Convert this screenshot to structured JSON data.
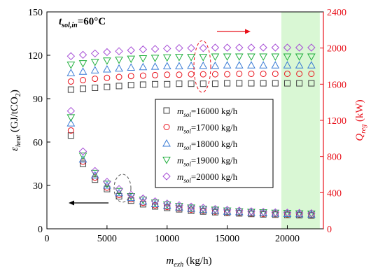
{
  "chart_data": {
    "type": "scatter",
    "annotation": "t_sol,in=60°C",
    "annotation_parts": {
      "sym": "t",
      "sub": "sol,in",
      "rest": "=60°C"
    },
    "xlabel": {
      "sym": "m",
      "sub": "exh",
      "unit": " (kg/h)"
    },
    "ylabel_left": {
      "sym": "ε",
      "sub": "heat",
      "unit_a": " (GJ/tCO",
      "unit_sub": "2",
      "unit_b": ")"
    },
    "ylabel_right": {
      "sym": "Q",
      "sub": "reg",
      "unit": " (kW)"
    },
    "xlim": [
      0,
      23000
    ],
    "ylim_left": [
      0,
      150
    ],
    "ylim_right": [
      0,
      2400
    ],
    "x_ticks": [
      "0",
      "5000",
      "10000",
      "15000",
      "20000"
    ],
    "y_ticks_left": [
      "0",
      "30",
      "60",
      "90",
      "120",
      "150"
    ],
    "y_ticks_right": [
      "0",
      "400",
      "800",
      "1200",
      "1600",
      "2000",
      "2400"
    ],
    "highlight_region": {
      "x_from": 19500,
      "x_to": 22700,
      "color": "#d9f7d4"
    },
    "x": [
      2000,
      3000,
      4000,
      5000,
      6000,
      7000,
      8000,
      9000,
      10000,
      11000,
      12000,
      13000,
      14000,
      15000,
      16000,
      17000,
      18000,
      19000,
      20000,
      21000,
      22000
    ],
    "series": [
      {
        "name": "m_sol=16000 kg/h",
        "label_parts": {
          "sym": "m",
          "sub": "sol",
          "rest": "=16000 kg/h"
        },
        "marker": "square",
        "color": "#404040",
        "eps_heat": [
          64.5,
          45.0,
          34.0,
          27.5,
          22.5,
          19.5,
          17.0,
          15.5,
          14.5,
          13.5,
          12.5,
          12.0,
          11.5,
          11.0,
          10.7,
          10.3,
          10.0,
          9.8,
          9.6,
          9.4,
          9.2
        ],
        "Q_reg": [
          1540,
          1550,
          1560,
          1570,
          1580,
          1590,
          1595,
          1600,
          1600,
          1605,
          1605,
          1605,
          1605,
          1610,
          1610,
          1610,
          1610,
          1610,
          1610,
          1610,
          1610
        ]
      },
      {
        "name": "m_sol=17000 kg/h",
        "label_parts": {
          "sym": "m",
          "sub": "sol",
          "rest": "=17000 kg/h"
        },
        "marker": "circle",
        "color": "#e8101a",
        "eps_heat": [
          68.0,
          46.5,
          35.5,
          28.5,
          23.5,
          20.5,
          18.0,
          16.3,
          15.2,
          14.2,
          13.3,
          12.6,
          12.0,
          11.5,
          11.1,
          10.7,
          10.4,
          10.2,
          10.0,
          9.8,
          9.6
        ],
        "Q_reg": [
          1630,
          1645,
          1660,
          1670,
          1680,
          1690,
          1695,
          1700,
          1705,
          1705,
          1710,
          1710,
          1710,
          1710,
          1715,
          1715,
          1715,
          1715,
          1715,
          1715,
          1715
        ]
      },
      {
        "name": "m_sol=18000 kg/h",
        "label_parts": {
          "sym": "m",
          "sub": "sol",
          "rest": "=18000 kg/h"
        },
        "marker": "triangle-up",
        "color": "#3a7bd5",
        "eps_heat": [
          73.0,
          48.0,
          37.0,
          30.0,
          24.8,
          21.5,
          19.0,
          17.2,
          16.0,
          14.9,
          14.0,
          13.2,
          12.6,
          12.0,
          11.6,
          11.2,
          10.9,
          10.6,
          10.4,
          10.2,
          10.0
        ],
        "Q_reg": [
          1725,
          1740,
          1755,
          1765,
          1775,
          1785,
          1790,
          1795,
          1800,
          1800,
          1805,
          1805,
          1805,
          1810,
          1810,
          1810,
          1810,
          1810,
          1810,
          1810,
          1810
        ]
      },
      {
        "name": "m_sol=19000 kg/h",
        "label_parts": {
          "sym": "m",
          "sub": "sol",
          "rest": "=19000 kg/h"
        },
        "marker": "triangle-down",
        "color": "#1fae3c",
        "eps_heat": [
          77.0,
          50.5,
          38.5,
          31.0,
          26.0,
          22.5,
          20.0,
          18.0,
          16.7,
          15.6,
          14.6,
          13.8,
          13.1,
          12.5,
          12.0,
          11.6,
          11.3,
          11.0,
          10.8,
          10.6,
          10.4
        ],
        "Q_reg": [
          1815,
          1830,
          1845,
          1860,
          1870,
          1880,
          1885,
          1890,
          1895,
          1900,
          1900,
          1900,
          1905,
          1905,
          1905,
          1905,
          1905,
          1905,
          1905,
          1905,
          1905
        ]
      },
      {
        "name": "m_sol=20000 kg/h",
        "label_parts": {
          "sym": "m",
          "sub": "sol",
          "rest": "=20000 kg/h"
        },
        "marker": "diamond",
        "color": "#a64dd6",
        "eps_heat": [
          81.5,
          53.5,
          40.0,
          32.5,
          27.5,
          23.5,
          21.0,
          19.0,
          17.5,
          16.3,
          15.3,
          14.5,
          13.7,
          13.1,
          12.6,
          12.1,
          11.7,
          11.4,
          11.2,
          11.0,
          10.8
        ],
        "Q_reg": [
          1910,
          1925,
          1940,
          1955,
          1965,
          1975,
          1985,
          1990,
          1995,
          2000,
          2000,
          2000,
          2005,
          2005,
          2005,
          2005,
          2005,
          2005,
          2005,
          2005,
          2005
        ]
      }
    ]
  }
}
